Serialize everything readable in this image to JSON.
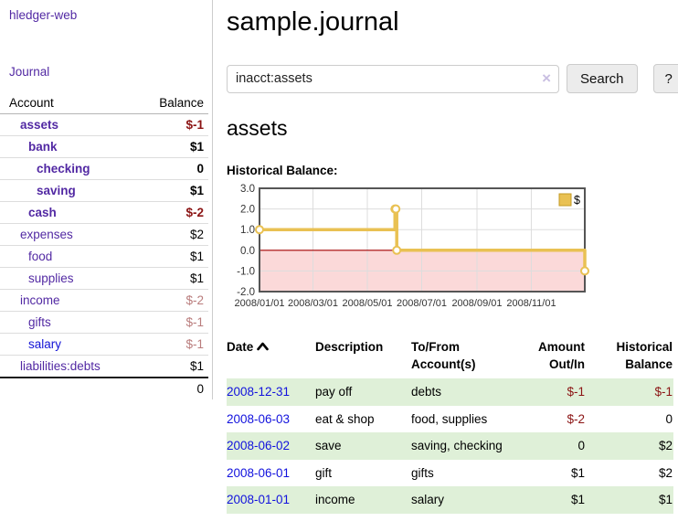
{
  "app": {
    "title": "hledger-web"
  },
  "colors": {
    "link_purple": "#5229a3",
    "link_blue": "#1414d6",
    "negative_strong": "#8b1414",
    "negative_faded": "#b97c7c",
    "row_shade_green": "#dff0d8",
    "series_gold": "#e9c153",
    "series_gold_border": "#c49b26",
    "negative_region_pink": "#fbd9d9",
    "zero_line_red": "#a40000",
    "grid_gray": "#dddddd",
    "chart_border_gray": "#555555"
  },
  "sidebar": {
    "journal_link": "Journal",
    "columns": {
      "account": "Account",
      "balance": "Balance"
    },
    "accounts": [
      {
        "label": "assets",
        "indent": 1,
        "bold": true,
        "balance": "$-1",
        "balance_style": "neg",
        "link_style": "purple"
      },
      {
        "label": "bank",
        "indent": 2,
        "bold": true,
        "balance": "$1",
        "balance_style": "pos",
        "link_style": "purple"
      },
      {
        "label": "checking",
        "indent": 3,
        "bold": true,
        "balance": "0",
        "balance_style": "pos",
        "link_style": "purple"
      },
      {
        "label": "saving",
        "indent": 3,
        "bold": true,
        "balance": "$1",
        "balance_style": "pos",
        "link_style": "purple"
      },
      {
        "label": "cash",
        "indent": 2,
        "bold": true,
        "balance": "$-2",
        "balance_style": "neg",
        "link_style": "purple"
      },
      {
        "label": "expenses",
        "indent": 1,
        "bold": false,
        "balance": "$2",
        "balance_style": "pos",
        "link_style": "purple"
      },
      {
        "label": "food",
        "indent": 2,
        "bold": false,
        "balance": "$1",
        "balance_style": "pos",
        "link_style": "purple"
      },
      {
        "label": "supplies",
        "indent": 2,
        "bold": false,
        "balance": "$1",
        "balance_style": "pos",
        "link_style": "purple"
      },
      {
        "label": "income",
        "indent": 1,
        "bold": false,
        "balance": "$-2",
        "balance_style": "negdim",
        "link_style": "purple"
      },
      {
        "label": "gifts",
        "indent": 2,
        "bold": false,
        "balance": "$-1",
        "balance_style": "negdim",
        "link_style": "purple"
      },
      {
        "label": "salary",
        "indent": 2,
        "bold": false,
        "balance": "$-1",
        "balance_style": "negdim",
        "link_style": "blue"
      },
      {
        "label": "liabilities:debts",
        "indent": 1,
        "bold": false,
        "balance": "$1",
        "balance_style": "pos",
        "link_style": "purple"
      }
    ],
    "total": "0"
  },
  "header": {
    "title": "sample.journal"
  },
  "search": {
    "value": "inacct:assets",
    "clear_glyph": "×",
    "clear_icon": "clear-x",
    "button_label": "Search",
    "help_label": "?"
  },
  "account_page": {
    "heading": "assets",
    "chart_label": "Historical Balance:"
  },
  "chart_data": {
    "type": "line",
    "step": true,
    "title": "Historical Balance",
    "legend": [
      {
        "label": "$",
        "color": "#e9c153"
      }
    ],
    "legend_position": "top-right",
    "grid": true,
    "ylim": [
      -2.0,
      3.0
    ],
    "y_ticks": [
      3.0,
      2.0,
      1.0,
      0.0,
      -1.0,
      -2.0
    ],
    "x_range_days": [
      0,
      365
    ],
    "x_ticks": [
      {
        "label": "2008/01/01",
        "day": 0
      },
      {
        "label": "2008/03/01",
        "day": 60
      },
      {
        "label": "2008/05/01",
        "day": 121
      },
      {
        "label": "2008/07/01",
        "day": 182
      },
      {
        "label": "2008/09/01",
        "day": 244
      },
      {
        "label": "2008/11/01",
        "day": 305
      }
    ],
    "series": [
      {
        "name": "$",
        "color": "#e9c153",
        "points": [
          {
            "date": "2008-01-01",
            "day": 0,
            "value": 1
          },
          {
            "date": "2008-06-01",
            "day": 152,
            "value": 2
          },
          {
            "date": "2008-06-02",
            "day": 153,
            "value": 2
          },
          {
            "date": "2008-06-03",
            "day": 154,
            "value": 0
          },
          {
            "date": "2008-12-31",
            "day": 365,
            "value": -1
          }
        ]
      }
    ],
    "negative_region_fill": "#fbd9d9",
    "zero_line_color": "#a40000"
  },
  "register": {
    "columns": {
      "date": "Date",
      "date_sort_icon": "caret-up",
      "description": "Description",
      "accounts_l1": "To/From",
      "accounts_l2": "Account(s)",
      "amount_l1": "Amount",
      "amount_l2": "Out/In",
      "balance_l1": "Historical",
      "balance_l2": "Balance"
    },
    "rows": [
      {
        "date": "2008-12-31",
        "description": "pay off",
        "accounts": "debts",
        "amount": "$-1",
        "amount_neg": true,
        "balance": "$-1",
        "balance_neg": true,
        "shade": true
      },
      {
        "date": "2008-06-03",
        "description": "eat & shop",
        "accounts": "food, supplies",
        "amount": "$-2",
        "amount_neg": true,
        "balance": "0",
        "balance_neg": false,
        "shade": false
      },
      {
        "date": "2008-06-02",
        "description": "save",
        "accounts": "saving, checking",
        "amount": "0",
        "amount_neg": false,
        "balance": "$2",
        "balance_neg": false,
        "shade": true
      },
      {
        "date": "2008-06-01",
        "description": "gift",
        "accounts": "gifts",
        "amount": "$1",
        "amount_neg": false,
        "balance": "$2",
        "balance_neg": false,
        "shade": false
      },
      {
        "date": "2008-01-01",
        "description": "income",
        "accounts": "salary",
        "amount": "$1",
        "amount_neg": false,
        "balance": "$1",
        "balance_neg": false,
        "shade": true
      }
    ]
  }
}
